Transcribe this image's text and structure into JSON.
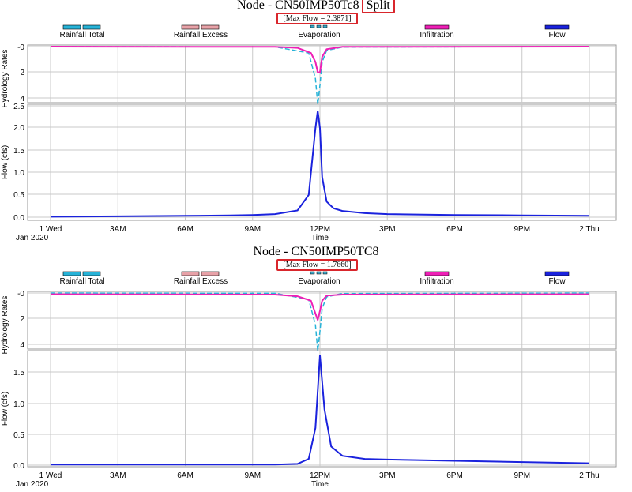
{
  "legend": {
    "rainfall_total": "Rainfall Total",
    "rainfall_excess": "Rainfall Excess",
    "evaporation": "Evaporation",
    "infiltration": "Infiltration",
    "flow": "Flow"
  },
  "colors": {
    "rainfall_total": "#27b3d8",
    "rainfall_excess": "#e8a2a8",
    "evaporation": "#3aa7c9",
    "infiltration": "#ee1fb6",
    "flow": "#1a22dd",
    "highlight": "#d9262c",
    "grid": "#c8c8c8"
  },
  "axes": {
    "hydrology_label": "Hydrology Rates",
    "flow_label": "Flow (cfs)",
    "time_label": "Time",
    "date_label": "Jan 2020",
    "x_ticks": [
      "1 Wed",
      "3AM",
      "6AM",
      "9AM",
      "12PM",
      "3PM",
      "6PM",
      "9PM",
      "2 Thu"
    ],
    "hyd_ticks": [
      "-0",
      "2",
      "4"
    ],
    "flow_ticks_top": [
      "2.5",
      "2.0",
      "1.5",
      "1.0",
      "0.5",
      "0.0"
    ],
    "flow_ticks_bottom": [
      "1.5",
      "1.0",
      "0.5",
      "0.0"
    ]
  },
  "panels": [
    {
      "title": "Node - CN50IMP50Tc8",
      "badge": "Split",
      "max_flow": "[Max Flow = 2.3871]"
    },
    {
      "title": "Node - CN50IMP50TC8",
      "badge": "",
      "max_flow": "[Max Flow = 1.7660]"
    }
  ],
  "chart_data": [
    {
      "type": "line",
      "title": "Node - CN50IMP50Tc8 Split",
      "annotation": "[Max Flow = 2.3871]",
      "xlabel": "Time",
      "x_ticks": [
        "1 Wed",
        "3AM",
        "6AM",
        "9AM",
        "12PM",
        "3PM",
        "6PM",
        "9PM",
        "2 Thu"
      ],
      "xlim_hours": [
        0,
        24
      ],
      "hydrology": {
        "ylabel": "Hydrology Rates",
        "ylim": [
          0,
          4
        ],
        "reversed": true,
        "series": [
          {
            "name": "Rainfall Total",
            "x": [
              0,
              10,
              11.5,
              11.8,
              11.9,
              12,
              12.1,
              12.3,
              13,
              24
            ],
            "y": [
              0,
              0.02,
              0.5,
              2.5,
              4.5,
              3.0,
              1.2,
              0.3,
              0.04,
              0
            ]
          },
          {
            "name": "Infiltration",
            "x": [
              0,
              10,
              11,
              11.6,
              11.8,
              11.9,
              12,
              12.1,
              12.3,
              13,
              24
            ],
            "y": [
              0,
              0.02,
              0.1,
              0.5,
              1.2,
              2.0,
              2.0,
              0.8,
              0.2,
              0.02,
              0
            ]
          }
        ]
      },
      "flow": {
        "ylabel": "Flow (cfs)",
        "ylim": [
          0,
          2.6
        ],
        "series": [
          {
            "name": "Flow",
            "x": [
              0,
              3,
              6,
              8,
              9,
              10,
              11,
              11.5,
              11.8,
              11.9,
              12,
              12.1,
              12.3,
              12.6,
              13,
              14,
              15,
              18,
              21,
              24
            ],
            "y": [
              0.01,
              0.02,
              0.03,
              0.04,
              0.05,
              0.07,
              0.15,
              0.5,
              2.0,
              2.3871,
              2.0,
              0.9,
              0.35,
              0.2,
              0.14,
              0.09,
              0.07,
              0.05,
              0.04,
              0.03
            ]
          }
        ]
      }
    },
    {
      "type": "line",
      "title": "Node - CN50IMP50TC8",
      "annotation": "[Max Flow = 1.7660]",
      "xlabel": "Time",
      "x_ticks": [
        "1 Wed",
        "3AM",
        "6AM",
        "9AM",
        "12PM",
        "3PM",
        "6PM",
        "9PM",
        "2 Thu"
      ],
      "xlim_hours": [
        0,
        24
      ],
      "hydrology": {
        "ylabel": "Hydrology Rates",
        "ylim": [
          0,
          4
        ],
        "reversed": true,
        "series": [
          {
            "name": "Rainfall Total",
            "x": [
              0,
              10,
              11.5,
              11.8,
              11.9,
              12,
              12.1,
              12.3,
              13,
              24
            ],
            "y": [
              0,
              0.02,
              0.5,
              2.5,
              4.5,
              3.0,
              1.2,
              0.3,
              0.04,
              0
            ]
          },
          {
            "name": "Infiltration",
            "x": [
              0,
              10,
              11,
              11.6,
              11.8,
              11.9,
              12,
              12.1,
              12.3,
              13,
              24
            ],
            "y": [
              0.1,
              0.12,
              0.25,
              0.6,
              1.6,
              2.1,
              1.4,
              0.6,
              0.2,
              0.12,
              0.1
            ]
          }
        ]
      },
      "flow": {
        "ylabel": "Flow (cfs)",
        "ylim": [
          0,
          1.85
        ],
        "series": [
          {
            "name": "Flow",
            "x": [
              0,
              6,
              10,
              11,
              11.5,
              11.8,
              12,
              12.2,
              12.5,
              13,
              14,
              15,
              18,
              21,
              24
            ],
            "y": [
              0.01,
              0.01,
              0.01,
              0.02,
              0.1,
              0.6,
              1.766,
              0.9,
              0.3,
              0.15,
              0.1,
              0.09,
              0.07,
              0.05,
              0.03
            ]
          }
        ]
      }
    }
  ]
}
